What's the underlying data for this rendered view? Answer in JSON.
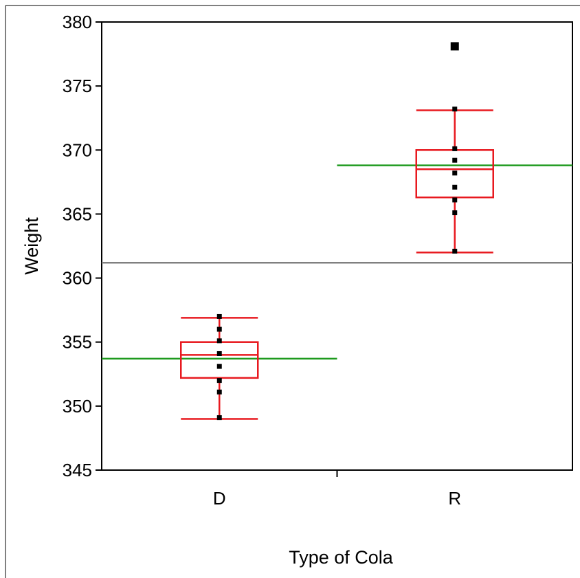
{
  "chart_data": {
    "type": "box",
    "xlabel": "Type of Cola",
    "ylabel": "Weight",
    "ylim": [
      345,
      380
    ],
    "yticks": [
      "345",
      "350",
      "355",
      "360",
      "365",
      "370",
      "375",
      "380"
    ],
    "categories": [
      "D",
      "R"
    ],
    "grand_mean": 361.2,
    "group_means": [
      353.7,
      368.8
    ],
    "boxes": [
      {
        "category": "D",
        "whisker_low": 349,
        "q1": 352.2,
        "median": 354,
        "q3": 355,
        "whisker_high": 356.9
      },
      {
        "category": "R",
        "whisker_low": 362,
        "q1": 366.3,
        "median": 368.5,
        "q3": 370,
        "whisker_high": 373.1
      }
    ],
    "points": [
      {
        "category": "D",
        "values": [
          349.1,
          351.1,
          352,
          353.1,
          354.1,
          355.1,
          356,
          357
        ]
      },
      {
        "category": "R",
        "values": [
          362.1,
          365.1,
          366.1,
          367.1,
          368.2,
          369.2,
          370.1,
          373.2
        ]
      }
    ],
    "outliers": [
      {
        "category": "R",
        "value": 378.1
      }
    ],
    "grid": false,
    "colors": {
      "box": "#e8191f",
      "group_mean": "#1e9a1e",
      "grand_mean": "#808080",
      "points": "#000000"
    }
  }
}
